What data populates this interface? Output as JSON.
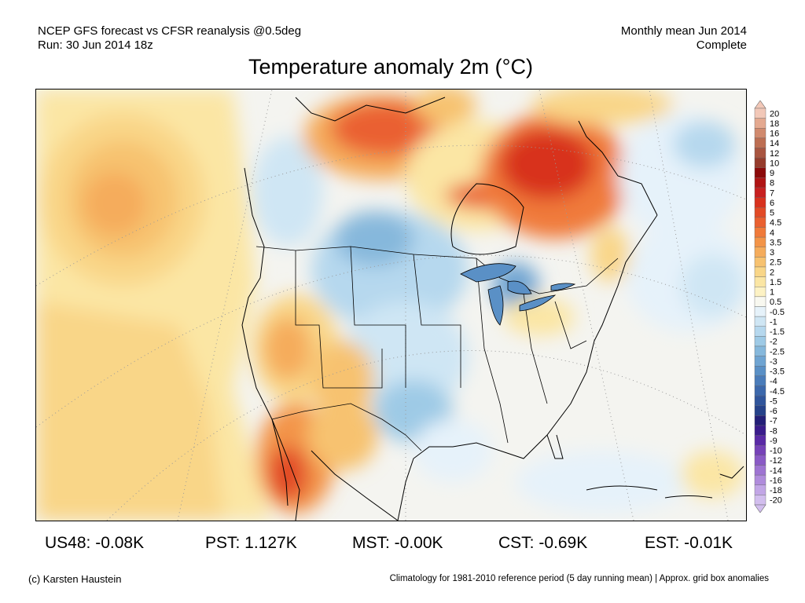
{
  "header": {
    "line1_left": "NCEP GFS forecast vs CFSR reanalysis @0.5deg",
    "line2_left": "Run: 30 Jun 2014 18z",
    "line1_right": "Monthly mean Jun 2014",
    "line2_right": "Complete"
  },
  "title": "Temperature anomaly 2m (°C)",
  "legend": {
    "labels": [
      "20",
      "18",
      "16",
      "14",
      "12",
      "10",
      "9",
      "8",
      "7",
      "6",
      "5",
      "4.5",
      "4",
      "3.5",
      "3",
      "2.5",
      "2",
      "1.5",
      "1",
      "0.5",
      "-0.5",
      "-1",
      "-1.5",
      "-2",
      "-2.5",
      "-3",
      "-3.5",
      "-4",
      "-4.5",
      "-5",
      "-6",
      "-7",
      "-8",
      "-9",
      "-10",
      "-12",
      "-14",
      "-16",
      "-18",
      "-20"
    ],
    "colors": [
      "#f2c8b8",
      "#e4a990",
      "#d18a6e",
      "#bd6e52",
      "#a95540",
      "#963c2c",
      "#8c0a0a",
      "#b01414",
      "#c82020",
      "#d8321e",
      "#e24a26",
      "#ea6030",
      "#f07a3a",
      "#f39448",
      "#f5ac5c",
      "#f7c270",
      "#f9d688",
      "#fbe6a4",
      "#fdf2c4",
      "#f8f8f0",
      "#e6f2fa",
      "#cfe6f4",
      "#b6d8ee",
      "#9ecae6",
      "#86b8dc",
      "#6fa4d2",
      "#5a90c6",
      "#4a7cba",
      "#3c68ac",
      "#30559c",
      "#26428a",
      "#241f78",
      "#3a1c8c",
      "#5a2aa6",
      "#7642b8",
      "#8a5ac6",
      "#9e74d2",
      "#b08cdc",
      "#c2a6e6",
      "#d2beee"
    ]
  },
  "map": {
    "dominant_warm_regions": [
      "Northern Canada",
      "Quebec",
      "Hudson Bay",
      "California",
      "Baja California",
      "Mexico",
      "Eastern Pacific"
    ],
    "dominant_cool_regions": [
      "Northern Plains",
      "Great Lakes",
      "Southern Plains",
      "Western Atlantic"
    ]
  },
  "stats": [
    {
      "label": "US48: -0.08K"
    },
    {
      "label": "PST: 1.127K"
    },
    {
      "label": "MST: -0.00K"
    },
    {
      "label": "CST: -0.69K"
    },
    {
      "label": "EST: -0.01K"
    }
  ],
  "footer": {
    "left": "(c) Karsten Haustein",
    "right": "Climatology for 1981-2010 reference period (5 day running mean) | Approx. grid box anomalies"
  }
}
